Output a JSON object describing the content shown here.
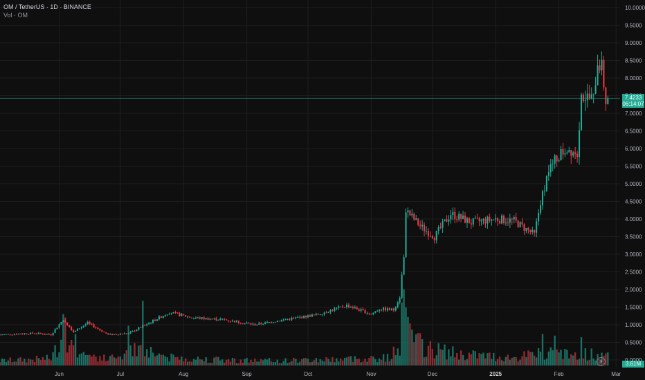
{
  "header": {
    "symbol_line": "OM / TetherUS · 1D · BINANCE",
    "volume_line": "Vol · OM"
  },
  "price_tag": {
    "price": "7.4233",
    "countdown": "06:14:07"
  },
  "volume_tag": {
    "value": "3.61M"
  },
  "icons": {
    "bolt": "lightning-icon"
  },
  "colors": {
    "up": "#22ab94",
    "down": "#f23645",
    "vol_up": "#1c6f62",
    "vol_down": "#8f2c33",
    "background": "#0f0f0f",
    "grid": "#1e1e1e",
    "price_line": "#22ab94"
  },
  "chart_data": {
    "type": "candlestick",
    "y_axis": {
      "min": 0,
      "max": 10,
      "scale": "linear",
      "position": "right",
      "tick_values": [
        0,
        0.5,
        1,
        1.5,
        2,
        2.5,
        3,
        3.5,
        4,
        4.5,
        5,
        5.5,
        6,
        6.5,
        7,
        7.5,
        8,
        8.5,
        9,
        9.5,
        10
      ],
      "tick_labels": [
        "0.0000",
        "0.5000",
        "1.0000",
        "1.5000",
        "2.0000",
        "2.5000",
        "3.0000",
        "3.5000",
        "4.0000",
        "4.5000",
        "5.0000",
        "5.5000",
        "6.0000",
        "6.5000",
        "7.0000",
        "7.5000",
        "8.0000",
        "8.5000",
        "9.0000",
        "9.5000",
        "10.0000"
      ]
    },
    "x_axis": {
      "start": "2024-05-03",
      "end": "2025-03-03",
      "ticks": [
        {
          "date": "2024-06-01",
          "label": "Jun",
          "bold": false
        },
        {
          "date": "2024-07-01",
          "label": "Jul",
          "bold": false
        },
        {
          "date": "2024-08-01",
          "label": "Aug",
          "bold": false
        },
        {
          "date": "2024-09-01",
          "label": "Sep",
          "bold": false
        },
        {
          "date": "2024-10-01",
          "label": "Oct",
          "bold": false
        },
        {
          "date": "2024-11-01",
          "label": "Nov",
          "bold": false
        },
        {
          "date": "2024-12-01",
          "label": "Dec",
          "bold": false
        },
        {
          "date": "2025-01-01",
          "label": "2025",
          "bold": true
        },
        {
          "date": "2025-02-01",
          "label": "Feb",
          "bold": false
        },
        {
          "date": "2025-03-01",
          "label": "Mar",
          "bold": false
        }
      ]
    },
    "grid": true,
    "last_price": 7.4233,
    "price_anchors": [
      [
        "2024-05-03",
        0.72
      ],
      [
        "2024-05-20",
        0.76
      ],
      [
        "2024-05-28",
        0.72
      ],
      [
        "2024-06-03",
        1.15
      ],
      [
        "2024-06-08",
        0.8
      ],
      [
        "2024-06-15",
        1.05
      ],
      [
        "2024-06-25",
        0.72
      ],
      [
        "2024-07-05",
        0.75
      ],
      [
        "2024-07-15",
        1.05
      ],
      [
        "2024-07-25",
        1.35
      ],
      [
        "2024-08-05",
        1.2
      ],
      [
        "2024-08-20",
        1.15
      ],
      [
        "2024-09-05",
        1.0
      ],
      [
        "2024-09-20",
        1.15
      ],
      [
        "2024-10-05",
        1.28
      ],
      [
        "2024-10-20",
        1.55
      ],
      [
        "2024-11-01",
        1.3
      ],
      [
        "2024-11-05",
        1.45
      ],
      [
        "2024-11-12",
        1.42
      ],
      [
        "2024-11-15",
        1.8
      ],
      [
        "2024-11-17",
        3.0
      ],
      [
        "2024-11-18",
        4.25
      ],
      [
        "2024-11-25",
        3.8
      ],
      [
        "2024-12-02",
        3.5
      ],
      [
        "2024-12-10",
        4.15
      ],
      [
        "2024-12-20",
        3.9
      ],
      [
        "2025-01-01",
        4.0
      ],
      [
        "2025-01-10",
        3.95
      ],
      [
        "2025-01-20",
        3.55
      ],
      [
        "2025-01-23",
        4.5
      ],
      [
        "2025-01-27",
        5.4
      ],
      [
        "2025-02-01",
        5.8
      ],
      [
        "2025-02-05",
        6.0
      ],
      [
        "2025-02-10",
        5.9
      ],
      [
        "2025-02-12",
        7.5
      ],
      [
        "2025-02-18",
        7.4
      ],
      [
        "2025-02-20",
        8.5
      ],
      [
        "2025-02-22",
        8.3
      ],
      [
        "2025-02-24",
        7.35
      ],
      [
        "2025-02-25",
        7.42
      ]
    ],
    "volume_anchors": [
      [
        "2024-05-03",
        0.15
      ],
      [
        "2024-05-28",
        0.22
      ],
      [
        "2024-06-03",
        0.95
      ],
      [
        "2024-06-10",
        0.4
      ],
      [
        "2024-06-25",
        0.2
      ],
      [
        "2024-07-05",
        0.4
      ],
      [
        "2024-07-12",
        0.55
      ],
      [
        "2024-07-25",
        0.25
      ],
      [
        "2024-08-20",
        0.18
      ],
      [
        "2024-09-15",
        0.15
      ],
      [
        "2024-10-15",
        0.2
      ],
      [
        "2024-11-10",
        0.25
      ],
      [
        "2024-11-15",
        0.6
      ],
      [
        "2024-11-17",
        1.4
      ],
      [
        "2024-11-20",
        0.9
      ],
      [
        "2024-11-28",
        0.55
      ],
      [
        "2024-12-15",
        0.35
      ],
      [
        "2025-01-10",
        0.25
      ],
      [
        "2025-01-25",
        0.4
      ],
      [
        "2025-02-05",
        0.35
      ],
      [
        "2025-02-18",
        0.35
      ],
      [
        "2025-02-25",
        0.3
      ]
    ],
    "volume_spikes": [
      [
        "2024-06-03",
        1.55
      ],
      [
        "2024-06-04",
        1.45
      ],
      [
        "2024-06-09",
        0.95
      ],
      [
        "2024-07-05",
        1.2
      ],
      [
        "2024-07-12",
        1.95
      ],
      [
        "2024-11-16",
        1.9
      ],
      [
        "2024-11-17",
        2.3
      ],
      [
        "2024-11-18",
        1.75
      ],
      [
        "2025-01-24",
        0.95
      ],
      [
        "2025-01-30",
        0.9
      ],
      [
        "2025-02-12",
        0.85
      ]
    ]
  }
}
